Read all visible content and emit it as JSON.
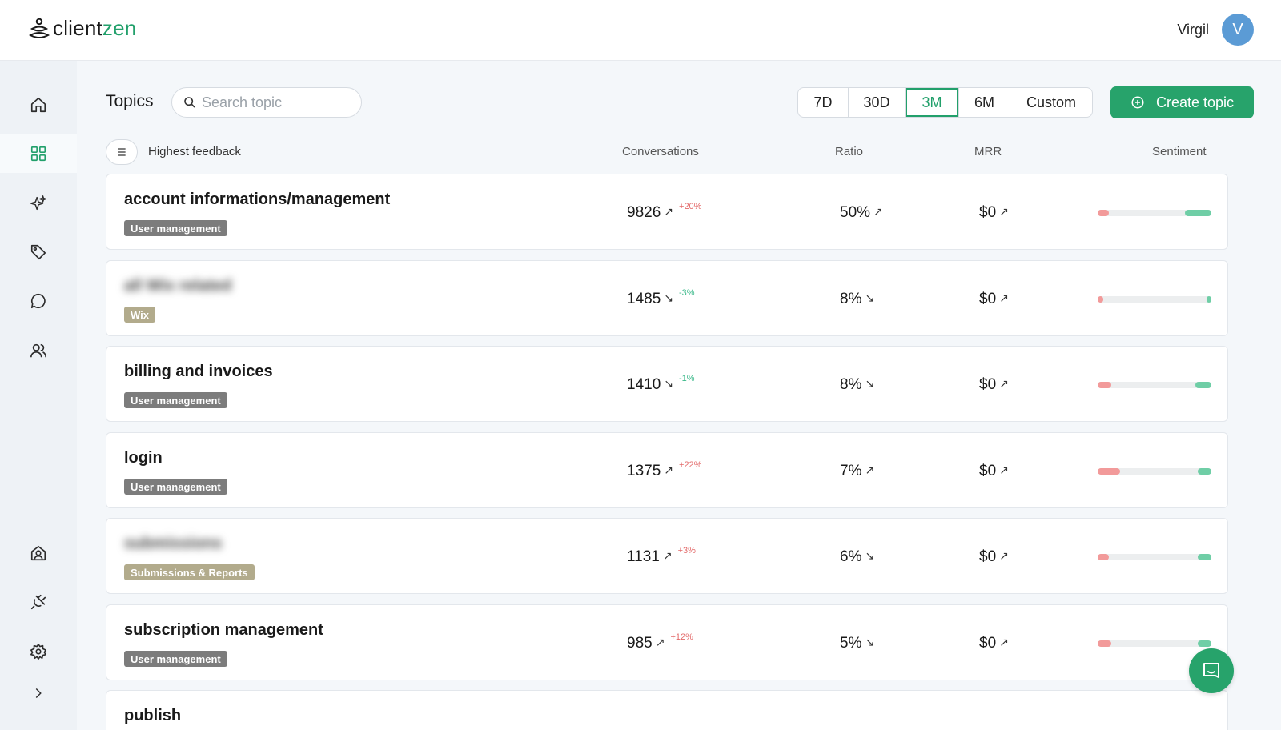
{
  "app": {
    "brand_main": "client",
    "brand_accent": "zen",
    "accent_color": "#22a06b"
  },
  "user": {
    "name": "Virgil",
    "initial": "V",
    "avatar_color": "#5b9bd5"
  },
  "sidebar": {
    "items": [
      {
        "icon": "home-icon"
      },
      {
        "icon": "grid-icon",
        "active": true
      },
      {
        "icon": "sparkles-icon"
      },
      {
        "icon": "tag-icon"
      },
      {
        "icon": "chat-icon"
      },
      {
        "icon": "users-icon"
      }
    ],
    "bottom_items": [
      {
        "icon": "account-icon"
      },
      {
        "icon": "plug-icon"
      },
      {
        "icon": "gear-icon"
      },
      {
        "icon": "chevron-right-icon"
      }
    ]
  },
  "toolbar": {
    "title": "Topics",
    "search_placeholder": "Search topic",
    "periods": [
      "7D",
      "30D",
      "3M",
      "6M",
      "Custom"
    ],
    "selected_period": "3M",
    "create_label": "Create topic"
  },
  "list_header": {
    "sort_label": "Highest feedback",
    "columns": [
      "Conversations",
      "Ratio",
      "MRR",
      "Sentiment"
    ]
  },
  "topics": [
    {
      "title": "account informations/management",
      "blurred": false,
      "tag": "User management",
      "tag_color": "#7c7c7c",
      "conversations": "9826",
      "conv_trend": "up",
      "delta": "+20%",
      "ratio": "50%",
      "ratio_trend": "up",
      "mrr": "$0",
      "mrr_trend": "up",
      "sentiment_neg": 0.1,
      "sentiment_pos": 0.23
    },
    {
      "title": "all Wix related",
      "blurred": true,
      "tag": "Wix",
      "tag_color": "#b2ab8c",
      "conversations": "1485",
      "conv_trend": "down",
      "delta": "-3%",
      "ratio": "8%",
      "ratio_trend": "down",
      "mrr": "$0",
      "mrr_trend": "up",
      "sentiment_neg": 0.05,
      "sentiment_pos": 0.04
    },
    {
      "title": "billing and invoices",
      "blurred": false,
      "tag": "User management",
      "tag_color": "#7c7c7c",
      "conversations": "1410",
      "conv_trend": "down",
      "delta": "-1%",
      "ratio": "8%",
      "ratio_trend": "down",
      "mrr": "$0",
      "mrr_trend": "up",
      "sentiment_neg": 0.12,
      "sentiment_pos": 0.14
    },
    {
      "title": "login",
      "blurred": false,
      "tag": "User management",
      "tag_color": "#7c7c7c",
      "conversations": "1375",
      "conv_trend": "up",
      "delta": "+22%",
      "ratio": "7%",
      "ratio_trend": "up",
      "mrr": "$0",
      "mrr_trend": "up",
      "sentiment_neg": 0.2,
      "sentiment_pos": 0.12
    },
    {
      "title": "submissions",
      "blurred": true,
      "tag": "Submissions & Reports",
      "tag_color": "#b2ab8c",
      "conversations": "1131",
      "conv_trend": "up",
      "delta": "+3%",
      "ratio": "6%",
      "ratio_trend": "down",
      "mrr": "$0",
      "mrr_trend": "up",
      "sentiment_neg": 0.1,
      "sentiment_pos": 0.12
    },
    {
      "title": "subscription management",
      "blurred": false,
      "tag": "User management",
      "tag_color": "#7c7c7c",
      "conversations": "985",
      "conv_trend": "up",
      "delta": "+12%",
      "ratio": "5%",
      "ratio_trend": "down",
      "mrr": "$0",
      "mrr_trend": "up",
      "sentiment_neg": 0.12,
      "sentiment_pos": 0.12
    },
    {
      "title": "publish",
      "blurred": false,
      "tag": "",
      "tag_color": "#7c7c7c",
      "conversations": "",
      "conv_trend": "up",
      "delta": "",
      "ratio": "",
      "ratio_trend": "up",
      "mrr": "",
      "mrr_trend": "up",
      "sentiment_neg": 0,
      "sentiment_pos": 0
    }
  ]
}
